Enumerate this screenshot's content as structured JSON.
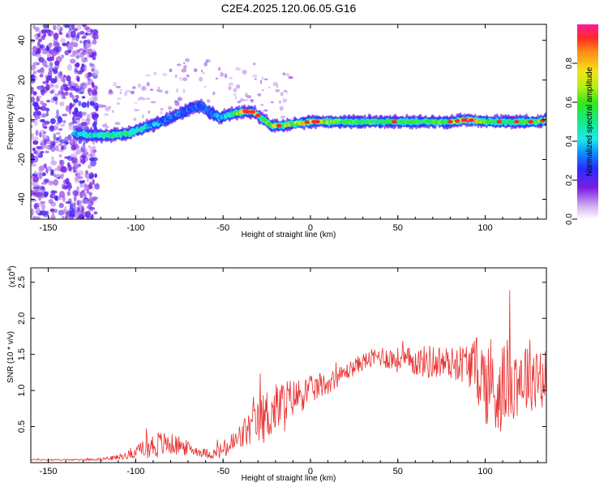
{
  "title": "C2E4.2025.120.06.05.G16",
  "chart_data": [
    {
      "type": "heatmap",
      "xlabel": "Height of straight line (km)",
      "ylabel": "Frequency (Hz)",
      "xlim": [
        -160,
        135
      ],
      "ylim": [
        -50,
        48
      ],
      "xticks": [
        -150,
        -100,
        -50,
        0,
        50,
        100
      ],
      "yticks": [
        -40,
        -20,
        0,
        20,
        40
      ],
      "colorbar": {
        "label": "Normalized spectral amplitude",
        "range": [
          0,
          1
        ],
        "ticks": [
          "0.0",
          "0.2",
          "0.4",
          "0.6",
          "0.8"
        ]
      },
      "ridge": {
        "x": [
          -135,
          -120,
          -105,
          -95,
          -85,
          -75,
          -68,
          -62,
          -58,
          -52,
          -45,
          -38,
          -33,
          -28,
          -22,
          -18,
          -10,
          0,
          20,
          50,
          80,
          90,
          100,
          110,
          120,
          130,
          135
        ],
        "y": [
          -7,
          -8,
          -7,
          -4,
          -1,
          3,
          6,
          7,
          4,
          1,
          3,
          4,
          4,
          1,
          -3,
          -3,
          -2,
          -1,
          -1,
          -1,
          -1,
          0,
          -1,
          -1,
          -1,
          -1,
          0
        ],
        "peak": [
          0.4,
          0.5,
          0.55,
          0.45,
          0.35,
          0.35,
          0.3,
          0.35,
          0.3,
          0.4,
          0.45,
          0.95,
          0.95,
          0.5,
          0.75,
          0.6,
          0.7,
          0.8,
          0.6,
          0.6,
          0.6,
          0.95,
          0.6,
          0.6,
          0.6,
          0.6,
          0.8
        ]
      },
      "noise_region": {
        "x": [
          -160,
          -122
        ],
        "amplitude": 0.2
      }
    },
    {
      "type": "line",
      "xlabel": "Height of straight line (km)",
      "ylabel": "SNR (10 * v/v)",
      "y_multiplier": "(x10",
      "y_multiplier_exp": "4",
      "y_multiplier_close": ")",
      "xlim": [
        -160,
        135
      ],
      "ylim": [
        0,
        2.7
      ],
      "xticks": [
        -150,
        -100,
        -50,
        0,
        50,
        100
      ],
      "yticks": [
        "0.5",
        "1.0",
        "1.5",
        "2.0",
        "2.5"
      ],
      "color": "#e8312f",
      "envelope": {
        "x": [
          -160,
          -130,
          -120,
          -110,
          -100,
          -95,
          -88,
          -80,
          -75,
          -70,
          -62,
          -55,
          -48,
          -42,
          -36,
          -30,
          -25,
          -20,
          -15,
          -10,
          -5,
          0,
          10,
          20,
          30,
          40,
          50,
          60,
          70,
          80,
          90,
          95,
          100,
          105,
          110,
          120,
          130,
          135
        ],
        "base": [
          0.04,
          0.04,
          0.05,
          0.07,
          0.14,
          0.2,
          0.25,
          0.26,
          0.23,
          0.2,
          0.14,
          0.12,
          0.2,
          0.3,
          0.45,
          0.55,
          0.65,
          0.75,
          0.8,
          0.9,
          0.95,
          1.0,
          1.1,
          1.25,
          1.4,
          1.48,
          1.42,
          1.4,
          1.4,
          1.38,
          1.38,
          1.3,
          1.15,
          1.0,
          1.1,
          1.2,
          1.25,
          1.2
        ],
        "amp": [
          0.01,
          0.01,
          0.02,
          0.04,
          0.07,
          0.14,
          0.2,
          0.15,
          0.14,
          0.1,
          0.06,
          0.08,
          0.15,
          0.2,
          0.25,
          0.3,
          0.4,
          0.35,
          0.4,
          0.25,
          0.25,
          0.2,
          0.15,
          0.12,
          0.12,
          0.15,
          0.18,
          0.2,
          0.25,
          0.22,
          0.3,
          0.45,
          0.6,
          0.85,
          0.6,
          0.55,
          0.5,
          0.5
        ]
      }
    }
  ]
}
